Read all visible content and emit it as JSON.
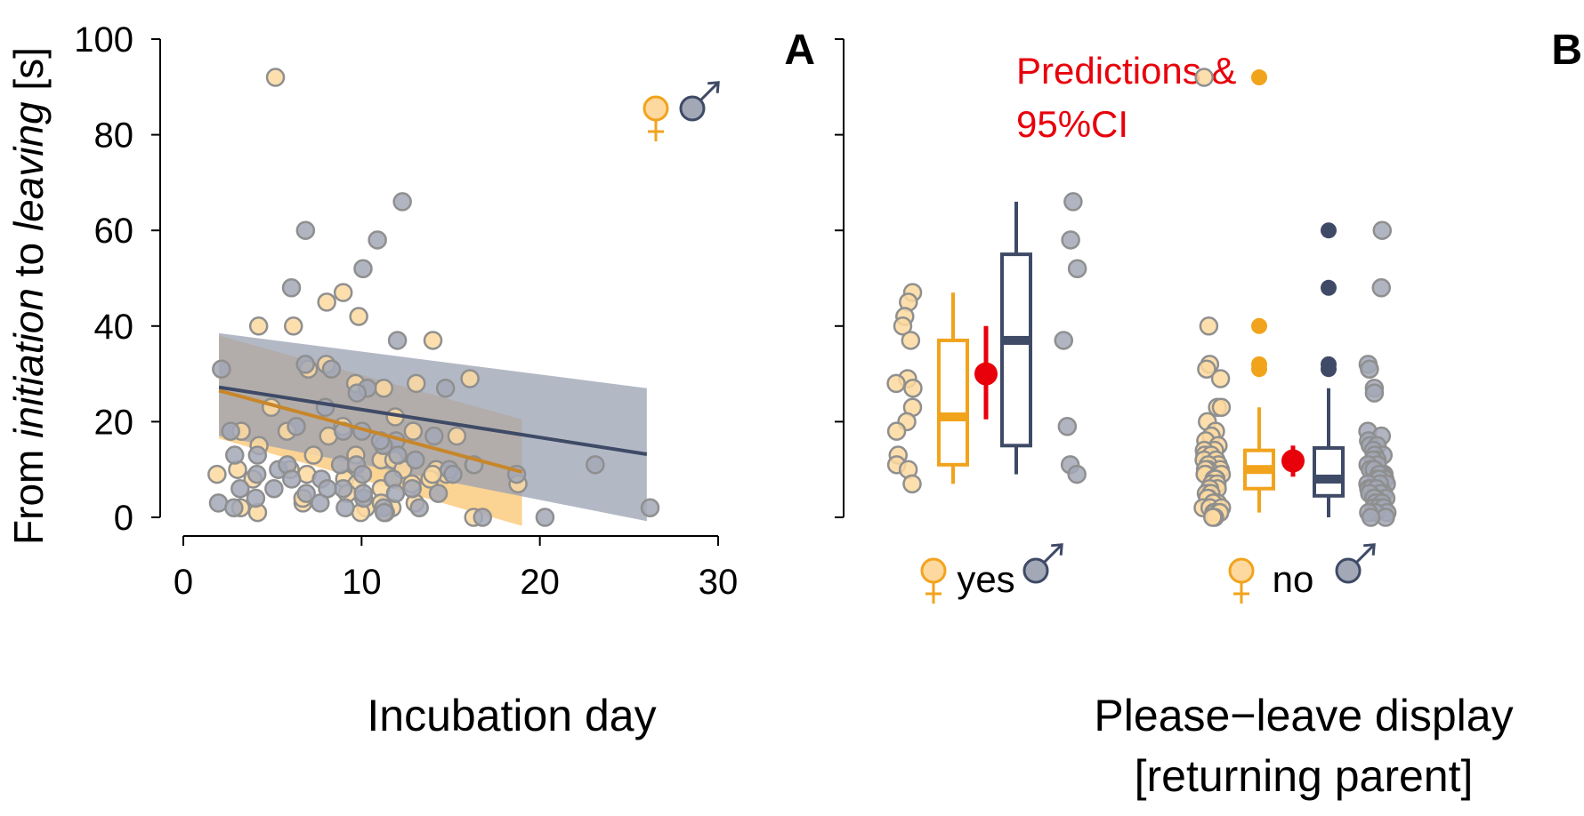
{
  "colors": {
    "female": "#f2a31c",
    "female_point": "#fdd9a0",
    "female_band": "#f9c46e",
    "female_line": "#c8862a",
    "male": "#3e4a66",
    "male_point": "#a3a8b7",
    "male_band": "#9aa0b2",
    "point_edge": "#8f8f8f",
    "prediction": "#e8000b"
  },
  "y_axis_label": {
    "part1": "From ",
    "part2": "initiation",
    "part3": " to ",
    "part4": "leaving",
    "part5": " [s]"
  },
  "legend_symbols": {
    "female": "female-symbol-icon",
    "male": "male-symbol-icon"
  },
  "chart_data": [
    {
      "type": "scatter",
      "panel_label": "A",
      "xlabel": "Incubation day",
      "ylabel": "From initiation to leaving [s]",
      "xlim": [
        0,
        30
      ],
      "ylim": [
        0,
        100
      ],
      "x_ticks": [
        0,
        10,
        20,
        30
      ],
      "y_ticks": [
        0,
        20,
        40,
        60,
        80,
        100
      ],
      "grid": false,
      "series": [
        {
          "sex": "female",
          "points": [
            [
              5,
              92
            ],
            [
              8,
              45
            ],
            [
              9,
              47
            ],
            [
              10,
              42
            ],
            [
              4,
              40
            ],
            [
              6,
              40
            ],
            [
              14,
              37
            ],
            [
              8,
              32
            ],
            [
              7,
              31
            ],
            [
              10,
              28
            ],
            [
              13,
              28
            ],
            [
              16,
              29
            ],
            [
              5,
              23
            ],
            [
              11,
              27
            ],
            [
              12,
              21
            ],
            [
              9,
              19
            ],
            [
              6,
              18
            ],
            [
              15,
              17
            ],
            [
              8,
              17
            ],
            [
              3,
              18
            ],
            [
              4,
              15
            ],
            [
              10,
              13
            ],
            [
              11,
              12
            ],
            [
              7,
              13
            ],
            [
              12,
              12
            ],
            [
              14,
              10
            ],
            [
              15,
              9
            ],
            [
              16,
              11
            ],
            [
              19,
              7
            ],
            [
              2,
              9
            ],
            [
              3,
              10
            ],
            [
              4,
              8
            ],
            [
              7,
              9
            ],
            [
              9,
              8
            ],
            [
              10,
              7
            ],
            [
              11,
              6
            ],
            [
              12,
              10
            ],
            [
              13,
              7
            ],
            [
              14,
              8
            ],
            [
              9,
              5
            ],
            [
              10,
              2
            ],
            [
              11,
              3
            ],
            [
              12,
              2
            ],
            [
              13,
              3
            ],
            [
              3,
              2
            ],
            [
              4,
              1
            ],
            [
              7,
              3
            ],
            [
              10,
              1
            ],
            [
              11,
              1
            ],
            [
              16,
              0
            ],
            [
              14,
              9
            ],
            [
              13,
              18
            ],
            [
              6,
              10
            ],
            [
              7,
              4
            ]
          ]
        },
        {
          "sex": "male",
          "points": [
            [
              12,
              66
            ],
            [
              7,
              60
            ],
            [
              11,
              58
            ],
            [
              10,
              52
            ],
            [
              6,
              48
            ],
            [
              12,
              37
            ],
            [
              7,
              32
            ],
            [
              8,
              31
            ],
            [
              10,
              27
            ],
            [
              10,
              26
            ],
            [
              2,
              31
            ],
            [
              15,
              27
            ],
            [
              6,
              19
            ],
            [
              10,
              18
            ],
            [
              12,
              16
            ],
            [
              14,
              17
            ],
            [
              8,
              23
            ],
            [
              9,
              18
            ],
            [
              3,
              18
            ],
            [
              4,
              13
            ],
            [
              3,
              13
            ],
            [
              9,
              11
            ],
            [
              11,
              15
            ],
            [
              5,
              10
            ],
            [
              6,
              11
            ],
            [
              10,
              11
            ],
            [
              13,
              12
            ],
            [
              15,
              10
            ],
            [
              4,
              9
            ],
            [
              3,
              6
            ],
            [
              5,
              6
            ],
            [
              6,
              8
            ],
            [
              8,
              8
            ],
            [
              9,
              6
            ],
            [
              10,
              9
            ],
            [
              12,
              8
            ],
            [
              13,
              6
            ],
            [
              14,
              5
            ],
            [
              9,
              2
            ],
            [
              10,
              4
            ],
            [
              11,
              2
            ],
            [
              12,
              5
            ],
            [
              13,
              2
            ],
            [
              2,
              3
            ],
            [
              3,
              2
            ],
            [
              4,
              4
            ],
            [
              8,
              3
            ],
            [
              7,
              5
            ],
            [
              11,
              1
            ],
            [
              17,
              0
            ],
            [
              20,
              0
            ],
            [
              23,
              11
            ],
            [
              26,
              2
            ],
            [
              19,
              9
            ],
            [
              15,
              9
            ],
            [
              16,
              11
            ],
            [
              11,
              16
            ],
            [
              12,
              13
            ],
            [
              10,
              5
            ],
            [
              8,
              6
            ]
          ]
        }
      ],
      "fits": [
        {
          "sex": "female",
          "x": [
            2,
            19
          ],
          "y": [
            26.5,
            9.5
          ],
          "ci_lower": [
            16.5,
            -1.8
          ],
          "ci_upper": [
            38,
            20.5
          ]
        },
        {
          "sex": "male",
          "x": [
            2,
            26
          ],
          "y": [
            27.2,
            13.2
          ],
          "ci_lower": [
            17,
            -0.8
          ],
          "ci_upper": [
            38.5,
            27
          ]
        }
      ],
      "legend": [
        "female-symbol-icon",
        "male-symbol-icon"
      ],
      "legend_position": "top-right"
    },
    {
      "type": "box",
      "panel_label": "B",
      "annotation": [
        "Predictions &",
        "95%CI"
      ],
      "xlabel": [
        "Please−leave display",
        "[returning parent]"
      ],
      "ylim": [
        0,
        100
      ],
      "y_ticks": [
        0,
        20,
        40,
        60,
        80,
        100
      ],
      "grid": false,
      "groups": [
        {
          "label": "yes",
          "female_points": [
            47,
            45,
            42,
            40,
            37,
            29,
            28,
            27,
            23,
            20,
            18,
            13,
            11,
            10,
            7
          ],
          "male_points": [
            66,
            58,
            52,
            37,
            19,
            11,
            9
          ],
          "female_box": {
            "whisker_low": 7,
            "q1": 11,
            "median": 21,
            "q3": 37,
            "whisker_high": 47,
            "outliers": []
          },
          "male_box": {
            "whisker_low": 9,
            "q1": 15,
            "median": 37,
            "q3": 55,
            "whisker_high": 66,
            "outliers": []
          },
          "prediction": {
            "mean": 30,
            "ci_low": 20.5,
            "ci_high": 40
          }
        },
        {
          "label": "no",
          "female_points": [
            92,
            40,
            32,
            31,
            29,
            23,
            23,
            20,
            18,
            17,
            16,
            15,
            14,
            14,
            13,
            13,
            12,
            12,
            11,
            11,
            10,
            10,
            10,
            9,
            9,
            9,
            8,
            8,
            8,
            7,
            7,
            6,
            6,
            5,
            5,
            5,
            4,
            4,
            3,
            3,
            3,
            2,
            2,
            2,
            1,
            1,
            1,
            1,
            0,
            0
          ],
          "male_points": [
            60,
            48,
            32,
            31,
            27,
            26,
            18,
            17,
            16,
            15,
            15,
            14,
            13,
            13,
            12,
            12,
            11,
            11,
            10,
            10,
            10,
            9,
            9,
            9,
            8,
            8,
            8,
            7,
            7,
            7,
            6,
            6,
            6,
            5,
            5,
            5,
            4,
            4,
            4,
            3,
            3,
            3,
            2,
            2,
            2,
            1,
            1,
            1,
            0,
            0
          ],
          "female_box": {
            "whisker_low": 1,
            "q1": 6,
            "median": 10,
            "q3": 14,
            "whisker_high": 23,
            "outliers": [
              92,
              40,
              32,
              31
            ]
          },
          "male_box": {
            "whisker_low": 0,
            "q1": 4.5,
            "median": 8,
            "q3": 14.5,
            "whisker_high": 27,
            "outliers": [
              60,
              48,
              32,
              31
            ]
          },
          "prediction": {
            "mean": 11.8,
            "ci_low": 8.5,
            "ci_high": 15
          }
        }
      ],
      "legend": [
        "female-symbol-icon",
        "male-symbol-icon"
      ]
    }
  ]
}
